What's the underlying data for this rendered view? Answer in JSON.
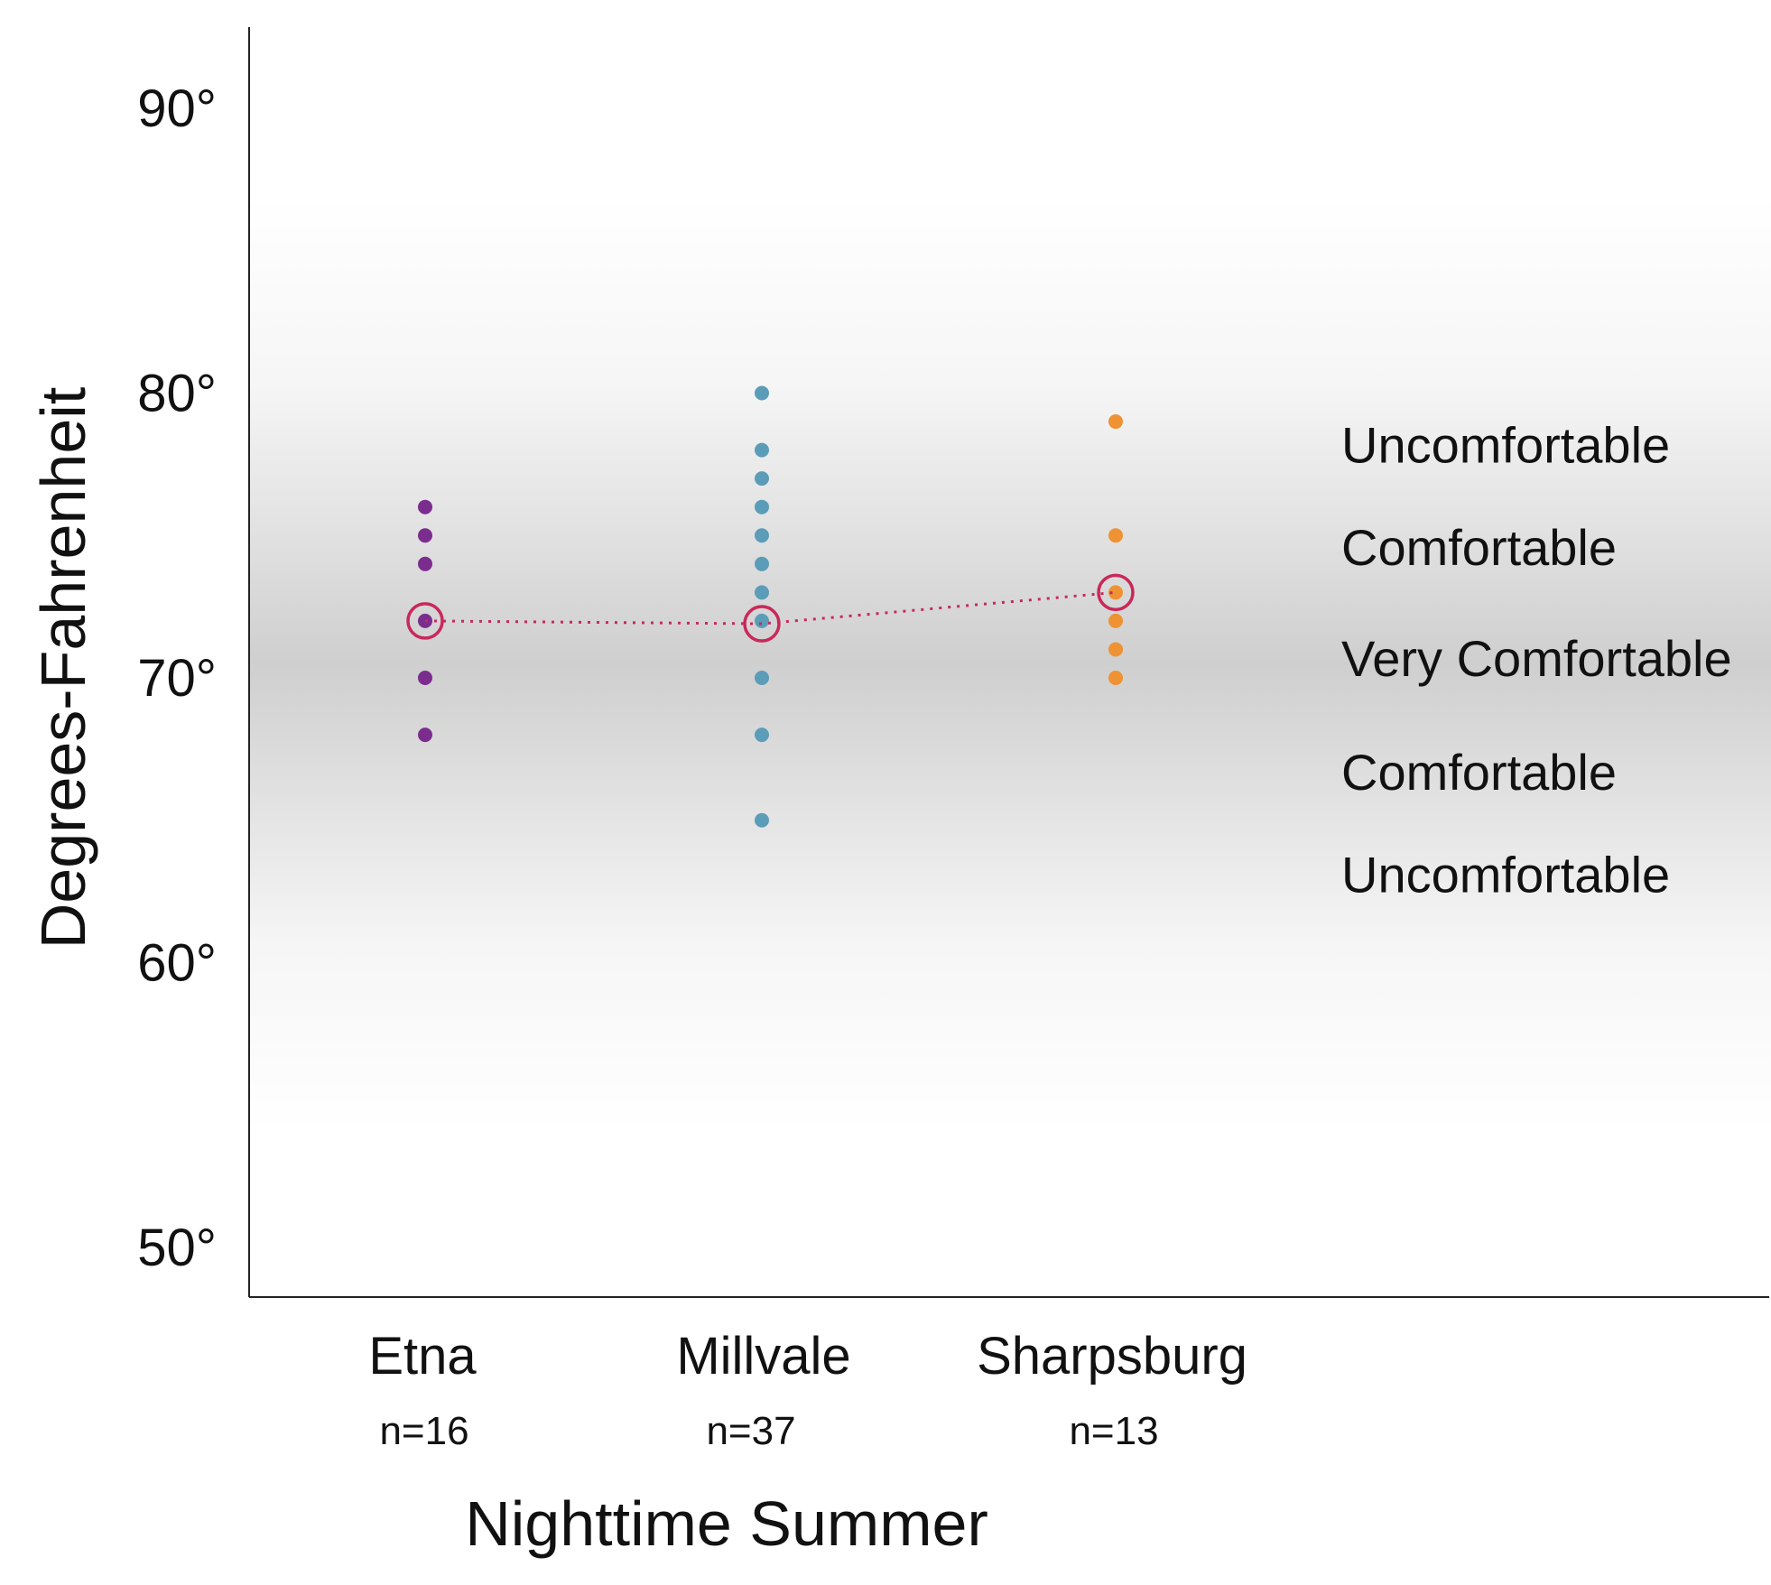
{
  "chart_data": {
    "type": "scatter",
    "title": "",
    "xlabel": "Nighttime Summer",
    "ylabel": "Degrees-Fahrenheit",
    "ylim": [
      48,
      92
    ],
    "yticks": [
      50,
      60,
      70,
      80,
      90
    ],
    "ytick_labels": [
      "50°",
      "60°",
      "70°",
      "80°",
      "90°"
    ],
    "categories": [
      "Etna",
      "Millvale",
      "Sharpsburg"
    ],
    "sample_sizes": [
      "n=16",
      "n=37",
      "n=13"
    ],
    "series": [
      {
        "name": "Etna",
        "color": "#7b2d8e",
        "values": [
          76,
          75,
          74,
          72,
          70,
          68
        ]
      },
      {
        "name": "Millvale",
        "color": "#5b9db8",
        "values": [
          80,
          78,
          77,
          76,
          75,
          74,
          73,
          72,
          70,
          68,
          65
        ]
      },
      {
        "name": "Sharpsburg",
        "color": "#ee9233",
        "values": [
          79,
          75,
          73,
          72,
          71,
          70
        ]
      }
    ],
    "means": {
      "color": "#c9285a",
      "values": [
        72.0,
        71.9,
        73.0
      ]
    },
    "comfort_bands": [
      {
        "label": "Uncomfortable",
        "y": 78.2
      },
      {
        "label": "Comfortable",
        "y": 74.6
      },
      {
        "label": "Very Comfortable",
        "y": 70.7
      },
      {
        "label": "Comfortable",
        "y": 66.7
      },
      {
        "label": "Uncomfortable",
        "y": 63.1
      }
    ],
    "comfort_center": 70.5
  }
}
